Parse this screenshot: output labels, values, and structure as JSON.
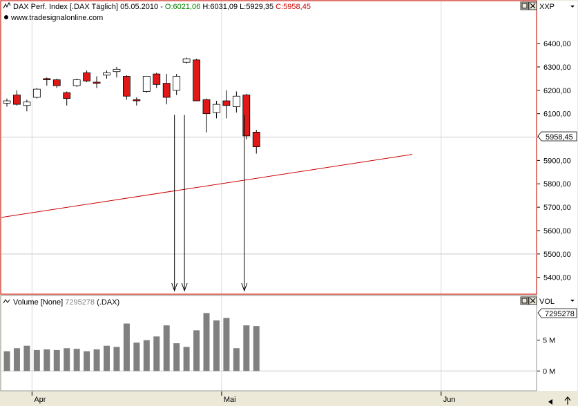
{
  "price_panel": {
    "header_prefix": "DAX Perf. Index [.DAX  Täglich] 05.05.2010 - ",
    "open_text": "O:6021,06",
    "high_text": " H:6031,09",
    "low_text": " L:5929,35",
    "close_text": " C:5958,45",
    "watermark": "www.tradesignalonline.com",
    "axis_code": "XXP",
    "last_price_label": "5958,45"
  },
  "volume_panel": {
    "header_name": "Volume [None] ",
    "header_value": "7295278",
    "header_symbol": " (.DAX)",
    "axis_code": "VOL",
    "last_volume_label": "7295278",
    "ticks": [
      {
        "label": "5 M",
        "value": 5000000
      },
      {
        "label": "0 M",
        "value": 0
      }
    ]
  },
  "time_axis": {
    "labels": [
      {
        "label": "Apr",
        "index": 3
      },
      {
        "label": "Mai",
        "index": 22
      },
      {
        "label": "Jun",
        "index": 44
      }
    ]
  },
  "colors": {
    "background": "#ece9d8",
    "panel": "#ffffff",
    "up_body": "#ffffff",
    "down_body": "#e01818",
    "volume_bar": "#808080",
    "trendline": "#cc0000",
    "open_color": "#008000",
    "close_color": "#cc0000"
  },
  "chart_data": {
    "type": "candlestick",
    "price_ticks": [
      "5400,00",
      "5500,00",
      "5600,00",
      "5700,00",
      "5800,00",
      "5900,00",
      "6000,00",
      "6100,00",
      "6200,00",
      "6300,00",
      "6400,00"
    ],
    "ylim": [
      5340,
      6480
    ],
    "trendline": {
      "x": [
        0,
        42
      ],
      "y": [
        5660,
        5935
      ]
    },
    "annotation_arrows": [
      17,
      18,
      24
    ],
    "candles": [
      {
        "o": 6145,
        "h": 6165,
        "l": 6130,
        "c": 6155
      },
      {
        "o": 6180,
        "h": 6200,
        "l": 6135,
        "c": 6140
      },
      {
        "o": 6135,
        "h": 6160,
        "l": 6110,
        "c": 6150
      },
      {
        "o": 6170,
        "h": 6210,
        "l": 6165,
        "c": 6205
      },
      {
        "o": 6250,
        "h": 6255,
        "l": 6220,
        "c": 6245
      },
      {
        "o": 6245,
        "h": 6250,
        "l": 6210,
        "c": 6220
      },
      {
        "o": 6190,
        "h": 6195,
        "l": 6135,
        "c": 6165
      },
      {
        "o": 6220,
        "h": 6250,
        "l": 6215,
        "c": 6245
      },
      {
        "o": 6275,
        "h": 6285,
        "l": 6235,
        "c": 6240
      },
      {
        "o": 6235,
        "h": 6260,
        "l": 6210,
        "c": 6230
      },
      {
        "o": 6265,
        "h": 6285,
        "l": 6250,
        "c": 6275
      },
      {
        "o": 6280,
        "h": 6300,
        "l": 6255,
        "c": 6290
      },
      {
        "o": 6260,
        "h": 6265,
        "l": 6160,
        "c": 6175
      },
      {
        "o": 6160,
        "h": 6170,
        "l": 6135,
        "c": 6155
      },
      {
        "o": 6195,
        "h": 6260,
        "l": 6190,
        "c": 6260
      },
      {
        "o": 6270,
        "h": 6275,
        "l": 6210,
        "c": 6225
      },
      {
        "o": 6230,
        "h": 6270,
        "l": 6140,
        "c": 6170
      },
      {
        "o": 6200,
        "h": 6270,
        "l": 6180,
        "c": 6260
      },
      {
        "o": 6320,
        "h": 6340,
        "l": 6315,
        "c": 6335
      },
      {
        "o": 6330,
        "h": 6335,
        "l": 6155,
        "c": 6155
      },
      {
        "o": 6160,
        "h": 6165,
        "l": 6020,
        "c": 6100
      },
      {
        "o": 6105,
        "h": 6155,
        "l": 6080,
        "c": 6140
      },
      {
        "o": 6155,
        "h": 6200,
        "l": 6080,
        "c": 6135
      },
      {
        "o": 6130,
        "h": 6195,
        "l": 6105,
        "c": 6175
      },
      {
        "o": 6180,
        "h": 6185,
        "l": 5990,
        "c": 6005
      },
      {
        "o": 6021.06,
        "h": 6031.09,
        "l": 5929.35,
        "c": 5958.45
      }
    ],
    "volume_ylim": [
      -1200000,
      10000000
    ],
    "volumes": [
      3200000,
      3700000,
      4100000,
      3400000,
      3500000,
      3400000,
      3700000,
      3600000,
      3200000,
      3500000,
      4100000,
      3900000,
      7700000,
      4600000,
      5000000,
      5600000,
      7400000,
      4500000,
      3900000,
      6600000,
      9400000,
      8200000,
      8600000,
      3700000,
      7400000,
      7295278
    ]
  }
}
